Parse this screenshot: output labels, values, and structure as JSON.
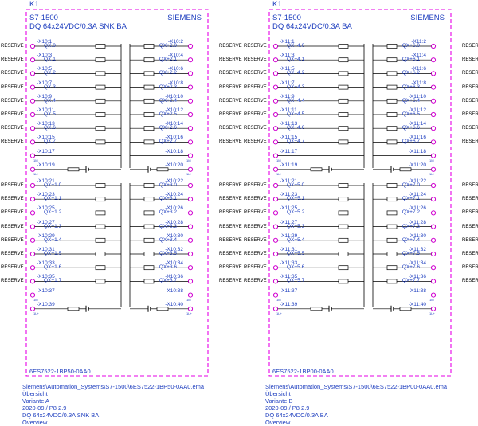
{
  "panels": [
    {
      "id": "K1",
      "device": "S7-1500",
      "brand": "SIEMENS",
      "variant_desc": "DQ 64x24VDC/0.3A SNK BA",
      "part_no": "6ES7522-1BP50-0AA0",
      "left_terms": [
        "-X10:1",
        "-X10:3",
        "-X10:5",
        "-X10:7",
        "-X10:9",
        "-X10:11",
        "-X10:13",
        "-X10:15",
        "-X10:17",
        "-X10:19",
        "-X10:21",
        "-X10:23",
        "-X10:25",
        "-X10:27",
        "-X10:29",
        "-X10:31",
        "-X10:33",
        "-X10:35",
        "-X10:37",
        "-X10:39"
      ],
      "right_terms": [
        "-X10:2",
        "-X10:4",
        "-X10:6",
        "-X10:8",
        "-X10:10",
        "-X10:12",
        "-X10:14",
        "-X10:16",
        "-X10:18",
        "-X10:20",
        "-X10:22",
        "-X10:24",
        "-X10:26",
        "-X10:28",
        "-X10:30",
        "-X10:32",
        "-X10:34",
        "-X10:36",
        "-X10:38",
        "-X10:40"
      ],
      "left_qx": [
        "QX.0",
        "QX.1",
        "QX.2",
        "QX.3",
        "QX.4",
        "QX.5",
        "QX.6",
        "QX.7",
        "QX+1.0",
        "QX+1.1",
        "QX+1.2",
        "QX+1.3",
        "QX+1.4",
        "QX+1.5",
        "QX+1.6",
        "QX+1.7"
      ],
      "right_qx": [
        "QX+2.0",
        "QX+2.1",
        "QX+2.2",
        "QX+2.3",
        "QX+2.4",
        "QX+2.5",
        "QX+2.6",
        "QX+2.7",
        "QX+3.0",
        "QX+3.1",
        "QX+3.2",
        "QX+3.3",
        "QX+3.4",
        "QX+3.5",
        "QX+3.6",
        "QX+3.7"
      ],
      "meta": [
        "Siemens\\Automation_Systems\\S7-1500\\6ES7522-1BP50-0AA0.ema",
        "Übersicht",
        "Variante A",
        "2020-09 / P8 2.9",
        "DQ 64x24VDC/0.3A SNK BA",
        "Overview"
      ]
    },
    {
      "id": "K1",
      "device": "S7-1500",
      "brand": "SIEMENS",
      "variant_desc": "DQ 64x24VDC/0.3A BA",
      "part_no": "6ES7522-1BP00-0AA0",
      "left_terms": [
        "-X11:1",
        "-X11:3",
        "-X11:5",
        "-X11:7",
        "-X11:9",
        "-X11:11",
        "-X11:13",
        "-X11:15",
        "-X11:17",
        "-X11:19",
        "-X11:21",
        "-X11:23",
        "-X11:25",
        "-X11:27",
        "-X11:29",
        "-X11:31",
        "-X11:33",
        "-X11:35",
        "-X11:37",
        "-X11:39"
      ],
      "right_terms": [
        "-X11:2",
        "-X11:4",
        "-X11:6",
        "-X11:8",
        "-X11:10",
        "-X11:12",
        "-X11:14",
        "-X11:16",
        "-X11:18",
        "-X11:20",
        "-X11:22",
        "-X11:24",
        "-X11:26",
        "-X11:28",
        "-X11:30",
        "-X11:32",
        "-X11:34",
        "-X11:36",
        "-X11:38",
        "-X11:40"
      ],
      "left_qx": [
        "QX+4.0",
        "QX+4.1",
        "QX+4.2",
        "QX+4.3",
        "QX+4.4",
        "QX+4.5",
        "QX+4.6",
        "QX+4.7",
        "QX+5.0",
        "QX+5.1",
        "QX+5.2",
        "QX+5.3",
        "QX+5.4",
        "QX+5.5",
        "QX+5.6",
        "QX+5.7"
      ],
      "right_qx": [
        "QX+6.0",
        "QX+6.1",
        "QX+6.2",
        "QX+6.3",
        "QX+6.4",
        "QX+6.5",
        "QX+6.6",
        "QX+6.7",
        "QX+7.0",
        "QX+7.1",
        "QX+7.2",
        "QX+7.3",
        "QX+7.4",
        "QX+7.5",
        "QX+7.6",
        "QX+7.7"
      ],
      "meta": [
        "Siemens\\Automation_Systems\\S7-1500\\6ES7522-1BP00-0AA0.ema",
        "Übersicht",
        "Variante B",
        "2020-09 / P8 2.9",
        "DQ 64x24VDC/0.3A BA",
        "Overview"
      ]
    }
  ],
  "reserve_label": "RESERVE",
  "power_labels": {
    "m": "1M",
    "l": "1L+"
  },
  "colors": {
    "frame": "#e600e6",
    "text": "#1f3fbf",
    "line": "#000000",
    "port": "#d000d0"
  }
}
